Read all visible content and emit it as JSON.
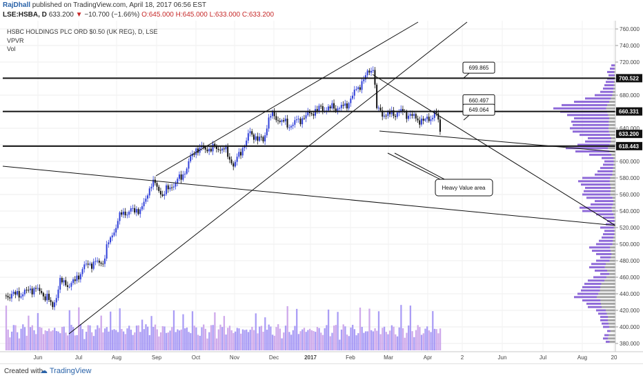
{
  "header": {
    "author": "RajDhall",
    "published_text": "published on TradingView.com, April 18, 2017 06:56 EST",
    "symbol": "LSE:HSBA, D",
    "last": "633.200",
    "change": "−10.700 (−1.66%)",
    "open": "O:645.000",
    "high": "H:645.000",
    "low": "L:633.000",
    "close": "C:633.200"
  },
  "legend": {
    "title": "HSBC HOLDINGS PLC ORD $0.50 (UK REG), D, LSE",
    "indicator1": "VPVR",
    "indicator2": "Vol"
  },
  "footer": {
    "created_with": "Created with",
    "brand": "TradingView"
  },
  "colors": {
    "up": "#2f3fd8",
    "down": "#111111",
    "vol_up": "#9b8cf3",
    "vol_down": "#c69ae8",
    "vpvr_up": "#7a4fd1",
    "vpvr_down": "#7d7d7d",
    "price_tag": "#111111"
  },
  "chart_data": {
    "type": "candlestick",
    "y_axis": {
      "min": 370,
      "max": 770,
      "ticks": [
        380,
        400,
        420,
        440,
        460,
        480,
        500,
        520,
        540,
        560,
        580,
        600,
        620,
        640,
        660,
        680,
        700,
        720,
        740,
        760
      ]
    },
    "x_axis": {
      "labels": [
        "Jun",
        "Jul",
        "Aug",
        "Sep",
        "Oct",
        "Nov",
        "Dec",
        "2017",
        "Feb",
        "Mar",
        "Apr",
        "2",
        "Jun",
        "Jul",
        "Aug",
        "20"
      ]
    },
    "price_path": [
      [
        "2016-05-20",
        438
      ],
      [
        "2016-06-01",
        440
      ],
      [
        "2016-06-10",
        447
      ],
      [
        "2016-06-20",
        436
      ],
      [
        "2016-06-24",
        423
      ],
      [
        "2016-06-30",
        455
      ],
      [
        "2016-07-08",
        450
      ],
      [
        "2016-07-20",
        476
      ],
      [
        "2016-08-01",
        478
      ],
      [
        "2016-08-05",
        500
      ],
      [
        "2016-08-15",
        537
      ],
      [
        "2016-08-31",
        543
      ],
      [
        "2016-09-07",
        576
      ],
      [
        "2016-09-15",
        560
      ],
      [
        "2016-09-30",
        582
      ],
      [
        "2016-10-10",
        615
      ],
      [
        "2016-10-31",
        616
      ],
      [
        "2016-11-08",
        595
      ],
      [
        "2016-11-20",
        634
      ],
      [
        "2016-11-30",
        624
      ],
      [
        "2016-12-05",
        657
      ],
      [
        "2016-12-20",
        643
      ],
      [
        "2017-01-10",
        663
      ],
      [
        "2017-01-31",
        666
      ],
      [
        "2017-02-10",
        690
      ],
      [
        "2017-02-21",
        715
      ],
      [
        "2017-02-24",
        662
      ],
      [
        "2017-03-03",
        656
      ],
      [
        "2017-03-15",
        660
      ],
      [
        "2017-03-31",
        648
      ],
      [
        "2017-04-10",
        658
      ],
      [
        "2017-04-13",
        633
      ]
    ],
    "last_price": 633.2,
    "levels": [
      {
        "price": 700.522,
        "label": "700.522"
      },
      {
        "price": 660.331,
        "label": "660.331"
      },
      {
        "price": 618.443,
        "label": "618.443"
      }
    ],
    "callouts": [
      {
        "text": "699.865",
        "price": 699.865
      },
      {
        "text": "660.497",
        "price": 660.497
      },
      {
        "text": "649.064",
        "price": 649.064
      }
    ],
    "annotation": "Heavy Value area",
    "last_price_label": "633.200",
    "vpvr": [
      [
        382,
        14,
        0.4
      ],
      [
        386,
        18,
        0.4
      ],
      [
        390,
        16,
        0.4
      ],
      [
        395,
        12,
        0.4
      ],
      [
        400,
        18,
        0.5
      ],
      [
        404,
        20,
        0.5
      ],
      [
        408,
        22,
        0.5
      ],
      [
        412,
        22,
        0.5
      ],
      [
        416,
        25,
        0.5
      ],
      [
        420,
        28,
        0.5
      ],
      [
        424,
        40,
        0.5
      ],
      [
        428,
        42,
        0.5
      ],
      [
        432,
        48,
        0.55
      ],
      [
        436,
        60,
        0.55
      ],
      [
        440,
        55,
        0.55
      ],
      [
        444,
        50,
        0.55
      ],
      [
        448,
        48,
        0.55
      ],
      [
        452,
        45,
        0.55
      ],
      [
        456,
        40,
        0.6
      ],
      [
        460,
        32,
        0.6
      ],
      [
        464,
        22,
        0.6
      ],
      [
        468,
        30,
        0.6
      ],
      [
        472,
        38,
        0.6
      ],
      [
        476,
        35,
        0.6
      ],
      [
        480,
        28,
        0.7
      ],
      [
        484,
        22,
        0.7
      ],
      [
        488,
        28,
        0.8
      ],
      [
        492,
        34,
        0.8
      ],
      [
        496,
        38,
        0.8
      ],
      [
        500,
        28,
        0.85
      ],
      [
        504,
        24,
        0.85
      ],
      [
        508,
        20,
        0.85
      ],
      [
        512,
        18,
        0.9
      ],
      [
        516,
        16,
        0.9
      ],
      [
        520,
        22,
        0.9
      ],
      [
        524,
        14,
        0.9
      ],
      [
        528,
        12,
        0.9
      ],
      [
        532,
        18,
        0.9
      ],
      [
        536,
        28,
        0.9
      ],
      [
        540,
        48,
        0.9
      ],
      [
        544,
        52,
        0.9
      ],
      [
        548,
        36,
        0.9
      ],
      [
        552,
        30,
        0.9
      ],
      [
        556,
        42,
        0.9
      ],
      [
        560,
        48,
        0.85
      ],
      [
        564,
        46,
        0.85
      ],
      [
        568,
        44,
        0.85
      ],
      [
        572,
        50,
        0.85
      ],
      [
        576,
        54,
        0.85
      ],
      [
        580,
        48,
        0.85
      ],
      [
        584,
        30,
        0.85
      ],
      [
        588,
        26,
        0.85
      ],
      [
        592,
        22,
        0.85
      ],
      [
        596,
        18,
        0.85
      ],
      [
        600,
        16,
        0.85
      ],
      [
        604,
        20,
        0.85
      ],
      [
        608,
        38,
        0.85
      ],
      [
        612,
        58,
        0.85
      ],
      [
        616,
        72,
        0.85
      ],
      [
        620,
        55,
        0.85
      ],
      [
        624,
        44,
        0.85
      ],
      [
        628,
        40,
        0.85
      ],
      [
        632,
        52,
        0.85
      ],
      [
        636,
        62,
        0.85
      ],
      [
        640,
        66,
        0.85
      ],
      [
        644,
        62,
        0.85
      ],
      [
        648,
        64,
        0.85
      ],
      [
        652,
        60,
        0.85
      ],
      [
        656,
        70,
        0.85
      ],
      [
        660,
        80,
        0.85
      ],
      [
        664,
        90,
        0.85
      ],
      [
        668,
        78,
        0.85
      ],
      [
        672,
        60,
        0.85
      ],
      [
        676,
        44,
        0.85
      ],
      [
        680,
        30,
        0.85
      ],
      [
        684,
        22,
        0.85
      ],
      [
        688,
        18,
        0.85
      ],
      [
        692,
        16,
        0.85
      ],
      [
        696,
        14,
        0.85
      ],
      [
        700,
        12,
        0.85
      ],
      [
        704,
        10,
        0.85
      ],
      [
        708,
        12,
        0.85
      ],
      [
        712,
        8,
        0.85
      ],
      [
        716,
        6,
        0.85
      ]
    ]
  }
}
